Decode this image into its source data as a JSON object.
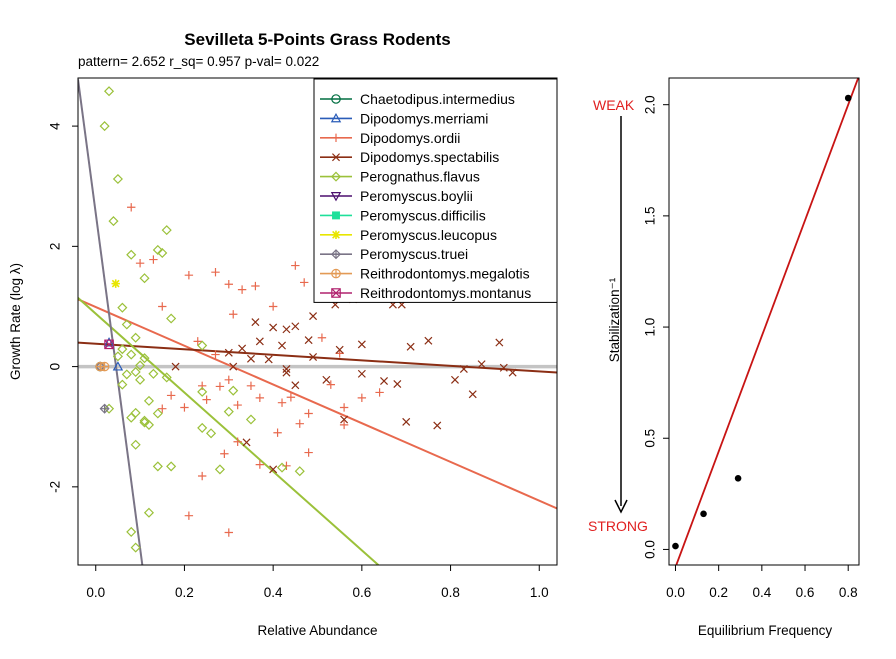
{
  "chart_data": [
    {
      "type": "scatter",
      "title": "Sevilleta 5-Points Grass Rodents",
      "subtitle": "pattern= 2.652 r_sq= 0.957 p-val= 0.022",
      "xlabel": "Relative Abundance",
      "ylabel": "Growth Rate (log λ)",
      "xlim": [
        -0.04,
        1.04
      ],
      "ylim": [
        -3.3,
        4.8
      ],
      "x_ticks": [
        "0.0",
        "0.2",
        "0.4",
        "0.6",
        "0.8",
        "1.0"
      ],
      "y_ticks": [
        "-2",
        "0",
        "2",
        "4"
      ],
      "legend_position": "top-right",
      "zero_line": true,
      "series": [
        {
          "name": "Chaetodipus.intermedius",
          "color": "#006e41",
          "marker": "circle",
          "points": [
            [
              0.01,
              0.0
            ]
          ],
          "fit": null
        },
        {
          "name": "Dipodomys.merriami",
          "color": "#2a5cb8",
          "marker": "triangle",
          "points": [
            [
              0.05,
              0.0
            ],
            [
              0.03,
              0.4
            ]
          ],
          "fit": null
        },
        {
          "name": "Dipodomys.ordii",
          "color": "#e8694e",
          "marker": "plus",
          "points": [
            [
              0.08,
              2.65
            ],
            [
              0.1,
              1.72
            ],
            [
              0.13,
              1.78
            ],
            [
              0.21,
              1.52
            ],
            [
              0.27,
              1.57
            ],
            [
              0.3,
              1.37
            ],
            [
              0.36,
              1.34
            ],
            [
              0.45,
              1.68
            ],
            [
              0.47,
              1.4
            ],
            [
              0.4,
              1.0
            ],
            [
              0.31,
              0.87
            ],
            [
              0.23,
              0.42
            ],
            [
              0.27,
              0.2
            ],
            [
              0.3,
              -0.22
            ],
            [
              0.35,
              -0.32
            ],
            [
              0.24,
              -0.32
            ],
            [
              0.25,
              -0.55
            ],
            [
              0.2,
              -0.68
            ],
            [
              0.15,
              -0.7
            ],
            [
              0.17,
              -0.48
            ],
            [
              0.28,
              -0.33
            ],
            [
              0.32,
              -0.64
            ],
            [
              0.37,
              -0.52
            ],
            [
              0.42,
              -0.6
            ],
            [
              0.44,
              -0.51
            ],
            [
              0.46,
              -0.95
            ],
            [
              0.41,
              -1.1
            ],
            [
              0.32,
              -1.25
            ],
            [
              0.29,
              -1.45
            ],
            [
              0.37,
              -1.63
            ],
            [
              0.43,
              -1.65
            ],
            [
              0.48,
              -1.43
            ],
            [
              0.21,
              -2.48
            ],
            [
              0.3,
              -2.76
            ],
            [
              0.24,
              -1.82
            ],
            [
              0.53,
              -0.3
            ],
            [
              0.56,
              -0.68
            ],
            [
              0.6,
              -0.52
            ],
            [
              0.64,
              -0.43
            ],
            [
              0.55,
              0.22
            ],
            [
              0.48,
              -0.78
            ],
            [
              0.56,
              -0.97
            ],
            [
              0.33,
              1.28
            ],
            [
              0.15,
              1.0
            ],
            [
              0.51,
              0.48
            ]
          ],
          "fit": {
            "intercept": 0.99,
            "slope": -3.22
          }
        },
        {
          "name": "Dipodomys.spectabilis",
          "color": "#8b2e14",
          "marker": "x",
          "points": [
            [
              0.36,
              0.74
            ],
            [
              0.4,
              0.65
            ],
            [
              0.43,
              0.62
            ],
            [
              0.45,
              0.67
            ],
            [
              0.49,
              0.84
            ],
            [
              0.54,
              1.03
            ],
            [
              0.58,
              1.12
            ],
            [
              0.63,
              1.14
            ],
            [
              0.67,
              1.03
            ],
            [
              0.69,
              1.03
            ],
            [
              0.71,
              0.33
            ],
            [
              0.75,
              0.43
            ],
            [
              0.55,
              0.28
            ],
            [
              0.49,
              0.16
            ],
            [
              0.48,
              0.44
            ],
            [
              0.42,
              0.35
            ],
            [
              0.37,
              0.42
            ],
            [
              0.33,
              0.3
            ],
            [
              0.3,
              0.23
            ],
            [
              0.31,
              0.0
            ],
            [
              0.35,
              0.13
            ],
            [
              0.39,
              0.12
            ],
            [
              0.43,
              -0.04
            ],
            [
              0.45,
              -0.31
            ],
            [
              0.52,
              -0.22
            ],
            [
              0.6,
              -0.12
            ],
            [
              0.65,
              -0.24
            ],
            [
              0.7,
              -0.92
            ],
            [
              0.77,
              -0.98
            ],
            [
              0.81,
              -0.22
            ],
            [
              0.83,
              -0.04
            ],
            [
              0.85,
              -0.46
            ],
            [
              0.87,
              0.04
            ],
            [
              0.91,
              0.4
            ],
            [
              0.92,
              -0.02
            ],
            [
              0.94,
              -0.1
            ],
            [
              0.56,
              -0.88
            ],
            [
              0.6,
              0.37
            ],
            [
              0.34,
              -1.26
            ],
            [
              0.4,
              -1.71
            ],
            [
              0.68,
              -0.29
            ],
            [
              0.43,
              -0.1
            ],
            [
              0.18,
              0.0
            ]
          ],
          "fit": {
            "intercept": 0.38,
            "slope": -0.46
          }
        },
        {
          "name": "Perognathus.flavus",
          "color": "#9bc13a",
          "marker": "diamond",
          "points": [
            [
              0.03,
              4.58
            ],
            [
              0.02,
              4.0
            ],
            [
              0.05,
              3.12
            ],
            [
              0.04,
              2.42
            ],
            [
              0.08,
              1.86
            ],
            [
              0.14,
              1.94
            ],
            [
              0.16,
              2.27
            ],
            [
              0.15,
              1.89
            ],
            [
              0.11,
              1.47
            ],
            [
              0.17,
              0.8
            ],
            [
              0.06,
              0.98
            ],
            [
              0.07,
              0.7
            ],
            [
              0.09,
              0.48
            ],
            [
              0.06,
              0.29
            ],
            [
              0.05,
              0.17
            ],
            [
              0.08,
              0.2
            ],
            [
              0.09,
              -0.09
            ],
            [
              0.1,
              -0.22
            ],
            [
              0.07,
              -0.13
            ],
            [
              0.06,
              -0.3
            ],
            [
              0.03,
              -0.7
            ],
            [
              0.09,
              -0.77
            ],
            [
              0.11,
              -0.9
            ],
            [
              0.14,
              -0.78
            ],
            [
              0.12,
              -0.57
            ],
            [
              0.13,
              -0.12
            ],
            [
              0.16,
              -0.18
            ],
            [
              0.12,
              -0.97
            ],
            [
              0.11,
              -0.93
            ],
            [
              0.08,
              -0.85
            ],
            [
              0.09,
              -1.3
            ],
            [
              0.14,
              -1.66
            ],
            [
              0.17,
              -1.66
            ],
            [
              0.24,
              -1.02
            ],
            [
              0.26,
              -1.11
            ],
            [
              0.28,
              -1.71
            ],
            [
              0.3,
              -0.75
            ],
            [
              0.31,
              -0.4
            ],
            [
              0.24,
              -0.42
            ],
            [
              0.35,
              -0.88
            ],
            [
              0.42,
              -1.68
            ],
            [
              0.46,
              -1.74
            ],
            [
              0.08,
              -2.75
            ],
            [
              0.09,
              -3.01
            ],
            [
              0.12,
              -2.43
            ],
            [
              0.11,
              0.14
            ],
            [
              0.24,
              0.35
            ],
            [
              0.1,
              0.02
            ]
          ],
          "fit": {
            "intercept": 0.88,
            "slope": -6.56
          }
        },
        {
          "name": "Peromyscus.boylii",
          "color": "#4b0f6e",
          "marker": "triangle-down",
          "points": [],
          "fit": null
        },
        {
          "name": "Peromyscus.difficilis",
          "color": "#1fe09a",
          "marker": "square",
          "points": [],
          "fit": null
        },
        {
          "name": "Peromyscus.leucopus",
          "color": "#e8e600",
          "marker": "asterisk",
          "points": [
            [
              0.045,
              1.38
            ]
          ],
          "fit": null
        },
        {
          "name": "Peromyscus.truei",
          "color": "#7a7486",
          "marker": "diamond-plus",
          "points": [
            [
              0.02,
              -0.7
            ],
            [
              0.01,
              0.0
            ]
          ],
          "fit": {
            "intercept": 2.55,
            "slope": -55.7
          }
        },
        {
          "name": "Reithrodontomys.megalotis",
          "color": "#e39a55",
          "marker": "circle-plus",
          "points": [
            [
              0.01,
              0.0
            ],
            [
              0.02,
              0.0
            ]
          ],
          "fit": null
        },
        {
          "name": "Reithrodontomys.montanus",
          "color": "#b0226e",
          "marker": "hourglass",
          "points": [
            [
              0.03,
              0.37
            ]
          ],
          "fit": null
        }
      ]
    },
    {
      "type": "scatter",
      "xlabel": "Equilibrium Frequency",
      "ylabel": "Stabilization⁻¹",
      "xlim": [
        -0.03,
        0.85
      ],
      "ylim": [
        -0.07,
        2.12
      ],
      "x_ticks": [
        "0.0",
        "0.2",
        "0.4",
        "0.6",
        "0.8"
      ],
      "y_ticks": [
        "0.0",
        "0.5",
        "1.0",
        "1.5",
        "2.0"
      ],
      "annotations": {
        "weak": "WEAK",
        "strong": "STRONG",
        "color": "#e02020"
      },
      "points": [
        [
          0.0,
          0.015
        ],
        [
          0.13,
          0.16
        ],
        [
          0.29,
          0.32
        ],
        [
          0.8,
          2.03
        ]
      ],
      "fit": {
        "intercept": -0.08,
        "slope": 2.6,
        "color": "#c81414"
      }
    }
  ]
}
